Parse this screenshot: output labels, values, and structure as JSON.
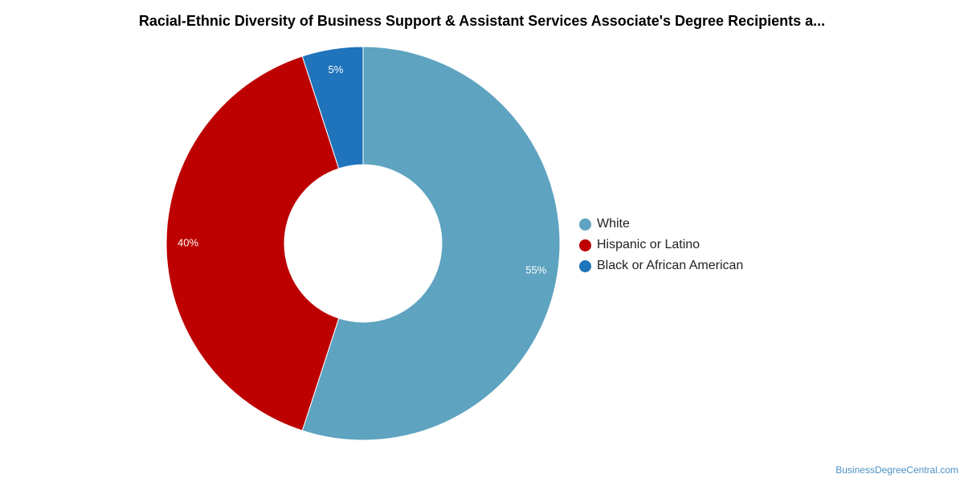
{
  "chart_data": {
    "type": "pie",
    "title": "Racial-Ethnic Diversity of Business Support & Assistant Services Associate's Degree Recipients a...",
    "donut": true,
    "legend_position": "right",
    "slices": [
      {
        "label": "White",
        "value": 55,
        "display": "55%",
        "color": "#5ea3c0"
      },
      {
        "label": "Hispanic or Latino",
        "value": 40,
        "display": "40%",
        "color": "#bd0000"
      },
      {
        "label": "Black or African American",
        "value": 5,
        "display": "5%",
        "color": "#1f74bb"
      }
    ]
  },
  "watermark": "BusinessDegreeCentral.com"
}
